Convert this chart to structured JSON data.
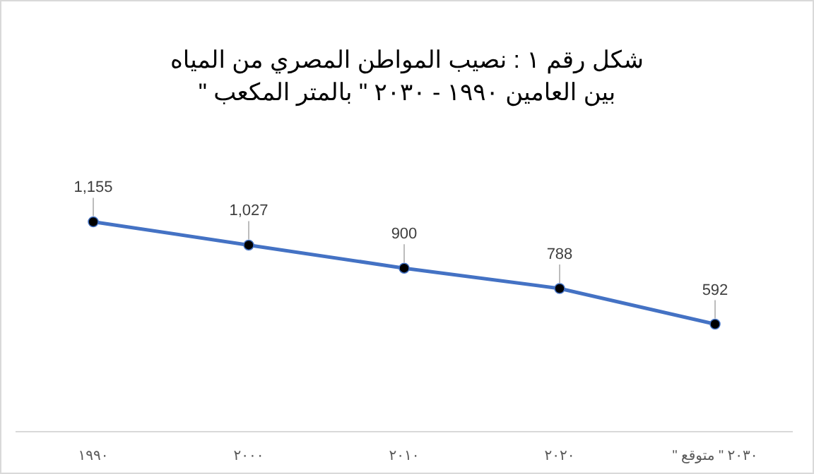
{
  "chart_data": {
    "type": "line",
    "title": "شكل رقم ١ : نصيب المواطن المصري من المياه",
    "subtitle": "بين العامين ١٩٩٠ - ٢٠٣٠ \" بالمتر المكعب \"",
    "categories": [
      "١٩٩٠",
      "٢٠٠٠",
      "٢٠١٠",
      "٢٠٢٠",
      "٢٠٣٠ \" متوقع \""
    ],
    "series": [
      {
        "color": "#4472c4",
        "values": [
          1155,
          1027,
          900,
          788,
          592
        ],
        "value_labels": [
          "1,155",
          "1,027",
          "900",
          "788",
          "592"
        ]
      }
    ],
    "marker": "circle",
    "line_style": "solid"
  }
}
